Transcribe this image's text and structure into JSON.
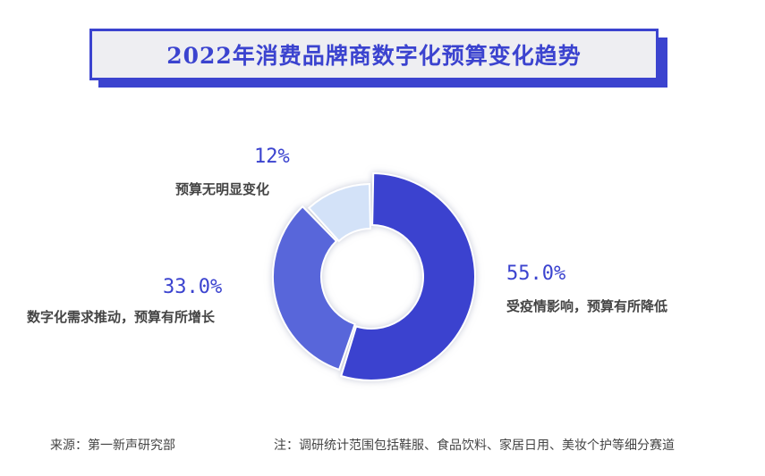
{
  "title": "2022年消费品牌商数字化预算变化趋势",
  "chart_data": {
    "type": "pie",
    "donut": true,
    "title": "2022年消费品牌商数字化预算变化趋势",
    "slices": [
      {
        "label": "受疫情影响，预算有所降低",
        "value": 55.0,
        "value_text": "55.0%",
        "color": "#3b43cf"
      },
      {
        "label": "数字化需求推动，预算有所增长",
        "value": 33.0,
        "value_text": "33.0%",
        "color": "#5966da"
      },
      {
        "label": "预算无明显变化",
        "value": 12,
        "value_text": "12%",
        "color": "#d3e2f8"
      }
    ]
  },
  "footer": {
    "source": "来源：第一新声研究部",
    "note": "注：调研统计范围包括鞋服、食品饮料、家居日用、美妆个护等细分赛道"
  }
}
